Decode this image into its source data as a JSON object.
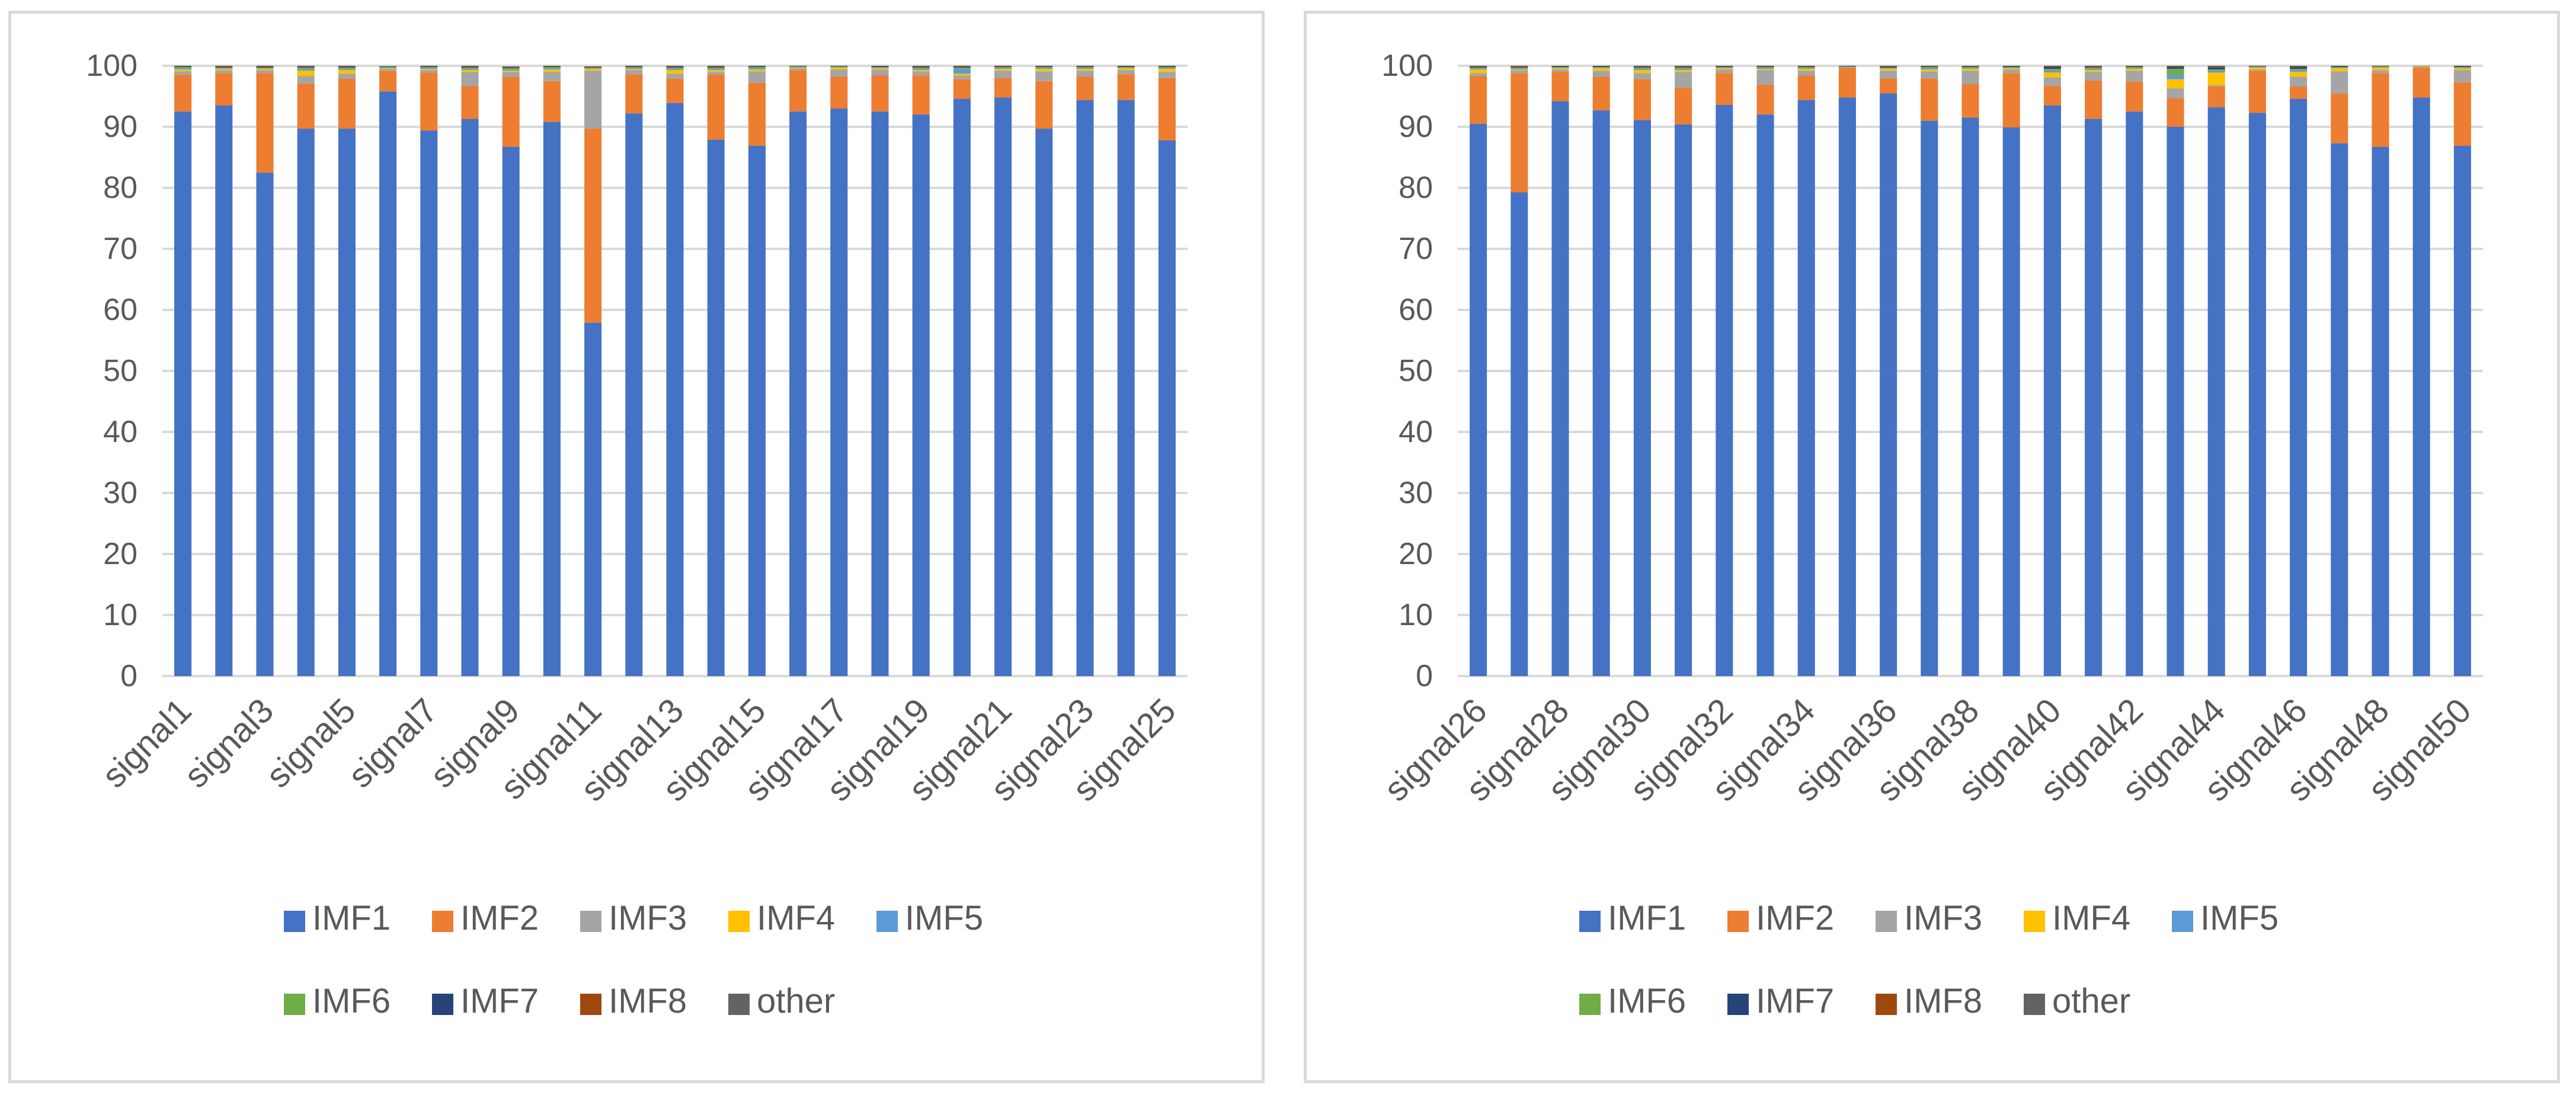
{
  "chart_data": [
    {
      "type": "bar",
      "stacked": true,
      "title": "",
      "xlabel": "",
      "ylabel": "",
      "ylim": [
        0,
        100
      ],
      "yticks": [
        0,
        10,
        20,
        30,
        40,
        50,
        60,
        70,
        80,
        90,
        100
      ],
      "grid": true,
      "legend_position": "bottom",
      "categories": [
        "signal1",
        "signal2",
        "signal3",
        "signal4",
        "signal5",
        "signal6",
        "signal7",
        "signal8",
        "signal9",
        "signal10",
        "signal11",
        "signal12",
        "signal13",
        "signal14",
        "signal15",
        "signal16",
        "signal17",
        "signal18",
        "signal19",
        "signal20",
        "signal21",
        "signal22",
        "signal23",
        "signal24",
        "signal25"
      ],
      "tick_labels": [
        "signal1",
        "signal3",
        "signal5",
        "signal7",
        "signal9",
        "signal11",
        "signal13",
        "signal15",
        "signal17",
        "signal19",
        "signal21",
        "signal23",
        "signal25"
      ],
      "series": [
        {
          "name": "IMF1",
          "color": "#4472C4",
          "values": [
            92.5,
            93.5,
            82.5,
            89.7,
            89.7,
            95.8,
            89.4,
            91.3,
            86.7,
            90.8,
            57.9,
            92.2,
            93.9,
            87.9,
            86.9,
            92.5,
            93.0,
            92.5,
            92.0,
            94.6,
            94.8,
            89.7,
            94.4,
            94.4,
            87.8
          ]
        },
        {
          "name": "IMF2",
          "color": "#ED7D31",
          "values": [
            6.0,
            5.3,
            16.3,
            7.4,
            8.2,
            3.4,
            9.5,
            5.4,
            11.5,
            6.7,
            31.8,
            6.4,
            4.0,
            10.6,
            10.3,
            6.8,
            5.2,
            5.9,
            6.4,
            3.2,
            3.2,
            7.8,
            3.8,
            4.2,
            10.2
          ]
        },
        {
          "name": "IMF3",
          "color": "#A5A5A5",
          "values": [
            0.6,
            0.5,
            0.5,
            1.2,
            0.8,
            0.3,
            0.4,
            2.3,
            0.8,
            1.5,
            9.5,
            0.7,
            0.8,
            0.5,
            1.9,
            0.3,
            1.2,
            1.0,
            0.7,
            0.6,
            1.2,
            1.6,
            1.0,
            0.7,
            1.0
          ]
        },
        {
          "name": "IMF4",
          "color": "#FFC000",
          "values": [
            0.3,
            0.2,
            0.2,
            0.9,
            0.6,
            0.1,
            0.2,
            0.3,
            0.2,
            0.4,
            0.3,
            0.2,
            0.6,
            0.3,
            0.3,
            0.1,
            0.3,
            0.2,
            0.2,
            0.3,
            0.3,
            0.4,
            0.3,
            0.3,
            0.5
          ]
        },
        {
          "name": "IMF5",
          "color": "#5B9BD5",
          "values": [
            0.2,
            0.1,
            0.1,
            0.3,
            0.2,
            0.1,
            0.2,
            0.2,
            0.2,
            0.2,
            0.1,
            0.2,
            0.2,
            0.2,
            0.2,
            0.1,
            0.1,
            0.1,
            0.2,
            0.8,
            0.2,
            0.2,
            0.2,
            0.1,
            0.2
          ]
        },
        {
          "name": "IMF6",
          "color": "#70AD47",
          "values": [
            0.2,
            0.1,
            0.1,
            0.2,
            0.2,
            0.1,
            0.1,
            0.2,
            0.2,
            0.2,
            0.1,
            0.1,
            0.2,
            0.2,
            0.2,
            0.1,
            0.1,
            0.1,
            0.2,
            0.2,
            0.1,
            0.1,
            0.1,
            0.1,
            0.1
          ]
        },
        {
          "name": "IMF7",
          "color": "#264478",
          "values": [
            0.1,
            0.1,
            0.1,
            0.1,
            0.1,
            0.05,
            0.1,
            0.1,
            0.1,
            0.1,
            0.1,
            0.1,
            0.1,
            0.1,
            0.1,
            0.05,
            0.05,
            0.1,
            0.1,
            0.1,
            0.1,
            0.1,
            0.1,
            0.1,
            0.1
          ]
        },
        {
          "name": "IMF8",
          "color": "#9E480E",
          "values": [
            0.05,
            0.1,
            0.1,
            0.1,
            0.1,
            0.05,
            0.05,
            0.1,
            0.1,
            0.05,
            0.1,
            0.05,
            0.1,
            0.1,
            0.05,
            0.05,
            0.05,
            0.05,
            0.1,
            0.1,
            0.1,
            0.05,
            0.05,
            0.05,
            0.05
          ]
        },
        {
          "name": "other",
          "color": "#636363",
          "values": [
            0.05,
            0.1,
            0.1,
            0.1,
            0.1,
            0.05,
            0.05,
            0.1,
            0.1,
            0.05,
            0.0,
            0.05,
            0.1,
            0.1,
            0.05,
            0.05,
            0.05,
            0.05,
            0.1,
            0.1,
            0.1,
            0.05,
            0.05,
            0.05,
            0.05
          ]
        }
      ]
    },
    {
      "type": "bar",
      "stacked": true,
      "title": "",
      "xlabel": "",
      "ylabel": "",
      "ylim": [
        0,
        100
      ],
      "yticks": [
        0,
        10,
        20,
        30,
        40,
        50,
        60,
        70,
        80,
        90,
        100
      ],
      "grid": true,
      "legend_position": "bottom",
      "categories": [
        "signal26",
        "signal27",
        "signal28",
        "signal29",
        "signal30",
        "signal31",
        "signal32",
        "signal33",
        "signal34",
        "signal35",
        "signal36",
        "signal37",
        "signal38",
        "signal39",
        "signal40",
        "signal41",
        "signal42",
        "signal43",
        "signal44",
        "signal45",
        "signal46",
        "signal47",
        "signal48",
        "signal49",
        "signal50"
      ],
      "tick_labels": [
        "signal26",
        "signal28",
        "signal30",
        "signal32",
        "signal34",
        "signal36",
        "signal38",
        "signal40",
        "signal42",
        "signal44",
        "signal46",
        "signal48",
        "signal50"
      ],
      "series": [
        {
          "name": "IMF1",
          "color": "#4472C4",
          "values": [
            90.5,
            79.3,
            94.2,
            92.7,
            91.1,
            90.4,
            93.6,
            92.0,
            94.4,
            94.8,
            95.5,
            91.0,
            91.5,
            89.9,
            93.5,
            91.3,
            92.5,
            90.0,
            93.2,
            92.3,
            94.6,
            87.3,
            86.7,
            94.8,
            86.9
          ]
        },
        {
          "name": "IMF2",
          "color": "#ED7D31",
          "values": [
            7.8,
            19.5,
            4.8,
            5.5,
            6.7,
            6.0,
            5.2,
            4.9,
            4.0,
            4.9,
            2.4,
            6.9,
            5.5,
            8.9,
            3.2,
            6.3,
            4.9,
            4.7,
            3.4,
            6.9,
            2.0,
            8.2,
            12.1,
            4.9,
            10.4
          ]
        },
        {
          "name": "IMF3",
          "color": "#A5A5A5",
          "values": [
            0.5,
            0.5,
            0.4,
            1.0,
            1.0,
            2.6,
            0.6,
            2.4,
            0.8,
            0.1,
            1.3,
            1.2,
            2.2,
            0.6,
            1.4,
            1.4,
            1.8,
            1.6,
            0.2,
            0.2,
            1.6,
            3.6,
            0.5,
            0.1,
            2.0
          ]
        },
        {
          "name": "IMF4",
          "color": "#FFC000",
          "values": [
            0.6,
            0.1,
            0.2,
            0.4,
            0.5,
            0.3,
            0.2,
            0.2,
            0.3,
            0.0,
            0.3,
            0.3,
            0.3,
            0.2,
            0.8,
            0.3,
            0.3,
            1.5,
            2.1,
            0.3,
            0.8,
            0.5,
            0.4,
            0.1,
            0.3
          ]
        },
        {
          "name": "IMF5",
          "color": "#5B9BD5",
          "values": [
            0.2,
            0.1,
            0.1,
            0.1,
            0.2,
            0.2,
            0.1,
            0.2,
            0.1,
            0.05,
            0.1,
            0.2,
            0.1,
            0.1,
            0.3,
            0.2,
            0.1,
            0.7,
            0.3,
            0.1,
            0.3,
            0.1,
            0.1,
            0.05,
            0.1
          ]
        },
        {
          "name": "IMF6",
          "color": "#70AD47",
          "values": [
            0.1,
            0.2,
            0.1,
            0.1,
            0.2,
            0.2,
            0.1,
            0.1,
            0.2,
            0.05,
            0.1,
            0.2,
            0.2,
            0.1,
            0.3,
            0.2,
            0.2,
            1.0,
            0.2,
            0.1,
            0.2,
            0.1,
            0.1,
            0.05,
            0.1
          ]
        },
        {
          "name": "IMF7",
          "color": "#264478",
          "values": [
            0.1,
            0.1,
            0.1,
            0.1,
            0.1,
            0.1,
            0.1,
            0.1,
            0.1,
            0.05,
            0.1,
            0.1,
            0.1,
            0.1,
            0.3,
            0.1,
            0.1,
            0.3,
            0.3,
            0.05,
            0.3,
            0.1,
            0.05,
            0.0,
            0.1
          ]
        },
        {
          "name": "IMF8",
          "color": "#9E480E",
          "values": [
            0.1,
            0.1,
            0.05,
            0.05,
            0.1,
            0.1,
            0.05,
            0.05,
            0.05,
            0.0,
            0.1,
            0.05,
            0.05,
            0.05,
            0.1,
            0.1,
            0.05,
            0.1,
            0.1,
            0.05,
            0.1,
            0.05,
            0.05,
            0.0,
            0.05
          ]
        },
        {
          "name": "other",
          "color": "#636363",
          "values": [
            0.1,
            0.1,
            0.05,
            0.05,
            0.1,
            0.1,
            0.05,
            0.05,
            0.05,
            0.05,
            0.1,
            0.05,
            0.05,
            0.05,
            0.1,
            0.1,
            0.05,
            0.1,
            0.2,
            0.0,
            0.1,
            0.05,
            0.0,
            0.0,
            0.05
          ]
        }
      ]
    }
  ]
}
